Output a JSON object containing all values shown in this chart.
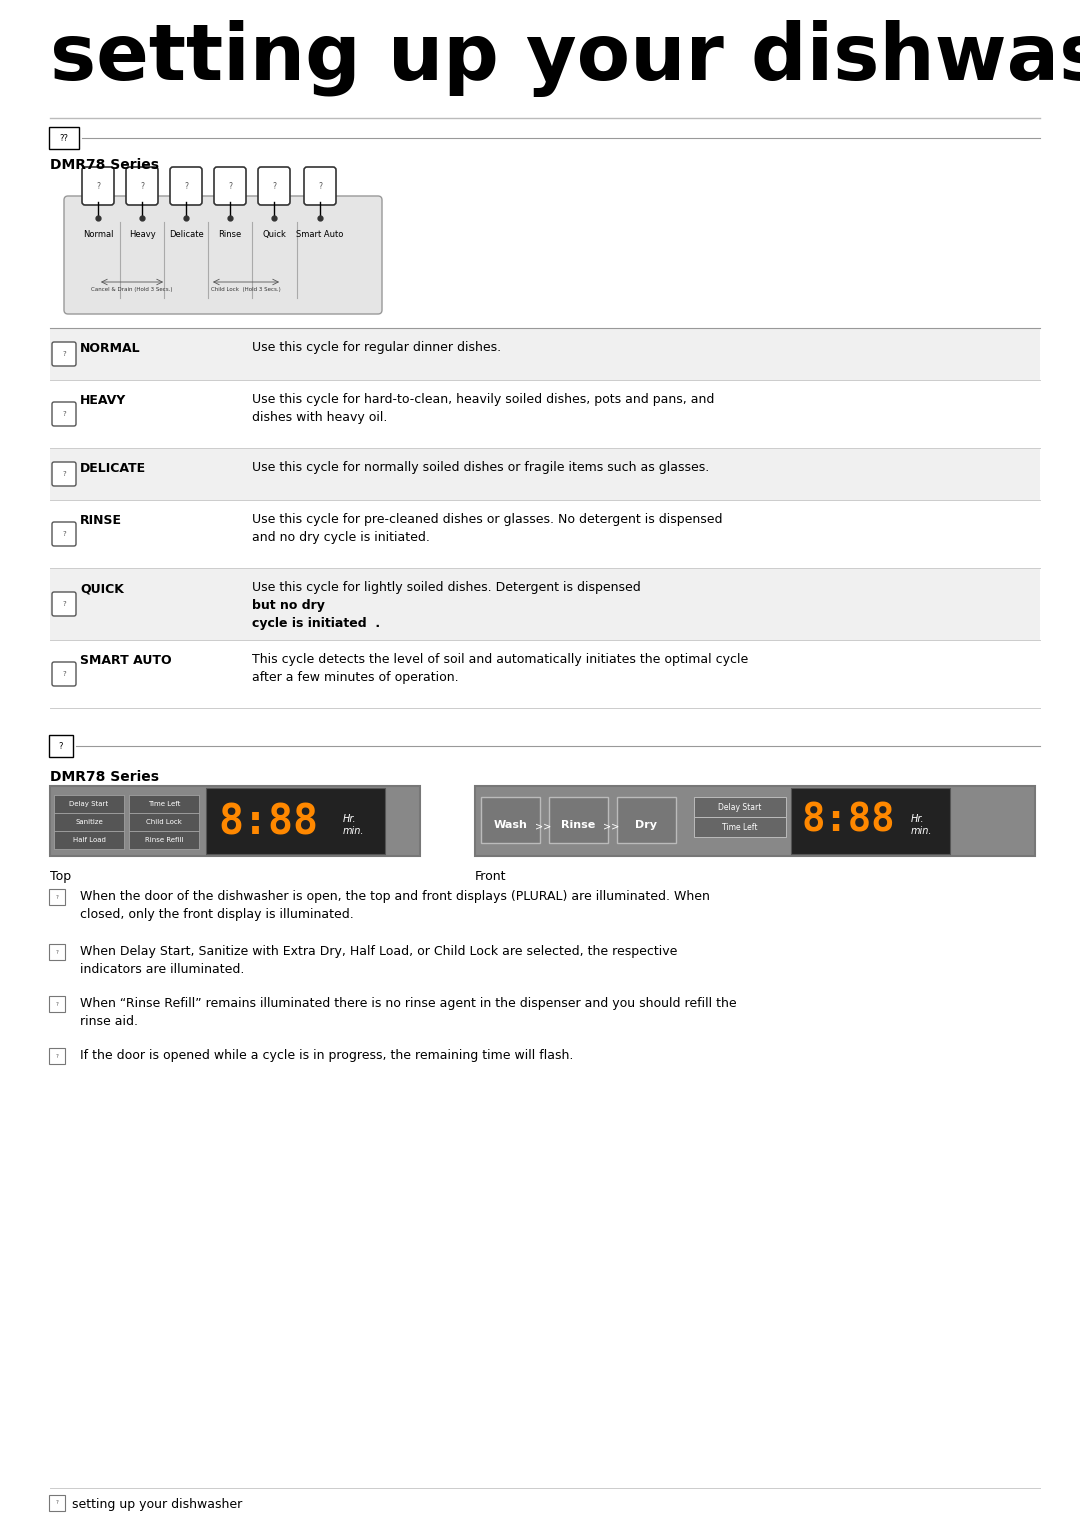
{
  "title": "setting up your dishwasher",
  "dmr78_series": "DMR78 Series",
  "cycle_names": [
    "Normal",
    "Heavy",
    "Delicate",
    "Rinse",
    "Quick",
    "Smart Auto"
  ],
  "cancel_label": "Cancel & Drain (Hold 3 Secs.)",
  "childlock_label": "Child Lock  (Hold 3 Secs.)",
  "table_rows": [
    {
      "cycle": "NORMAL",
      "desc": "Use this cycle for regular dinner dishes.",
      "desc_before_bold": "",
      "bold_part": "",
      "desc_after_bold": ""
    },
    {
      "cycle": "HEAVY",
      "desc": "Use this cycle for hard-to-clean, heavily soiled dishes, pots and pans, and\ndishes with heavy oil.",
      "desc_before_bold": "",
      "bold_part": "",
      "desc_after_bold": ""
    },
    {
      "cycle": "DELICATE",
      "desc": "Use this cycle for normally soiled dishes or fragile items such as glasses.",
      "desc_before_bold": "",
      "bold_part": "",
      "desc_after_bold": ""
    },
    {
      "cycle": "RINSE",
      "desc": "Use this cycle for pre-cleaned dishes or glasses. No detergent is dispensed\nand no dry cycle is initiated.",
      "desc_before_bold": "",
      "bold_part": "",
      "desc_after_bold": ""
    },
    {
      "cycle": "QUICK",
      "desc": "",
      "desc_before_bold": "Use this cycle for lightly soiled dishes. Detergent is dispensed ",
      "bold_part": "but no dry\ncycle is initiated",
      "desc_after_bold": "  ."
    },
    {
      "cycle": "SMART AUTO",
      "desc": "This cycle detects the level of soil and automatically initiates the optimal cycle\nafter a few minutes of operation.",
      "desc_before_bold": "",
      "bold_part": "",
      "desc_after_bold": ""
    }
  ],
  "bullet_notes": [
    "When the door of the dishwasher is open, the top and front displays (PLURAL) are illuminated. When\nclosed, only the front display is illuminated.",
    "When Delay Start, Sanitize with Extra Dry, Half Load, or Child Lock are selected, the respective\nindicators are illuminated.",
    "When “Rinse Refill” remains illuminated there is no rinse agent in the dispenser and you should refill the\nrinse aid.",
    "If the door is opened while a cycle is in progress, the remaining time will flash."
  ],
  "footer_text": "setting up your dishwasher",
  "bg_color": "#ffffff",
  "gray_row": "#f0f0f0",
  "display_gray": "#888888",
  "display_dark": "#333333",
  "display_orange": "#ff8800"
}
